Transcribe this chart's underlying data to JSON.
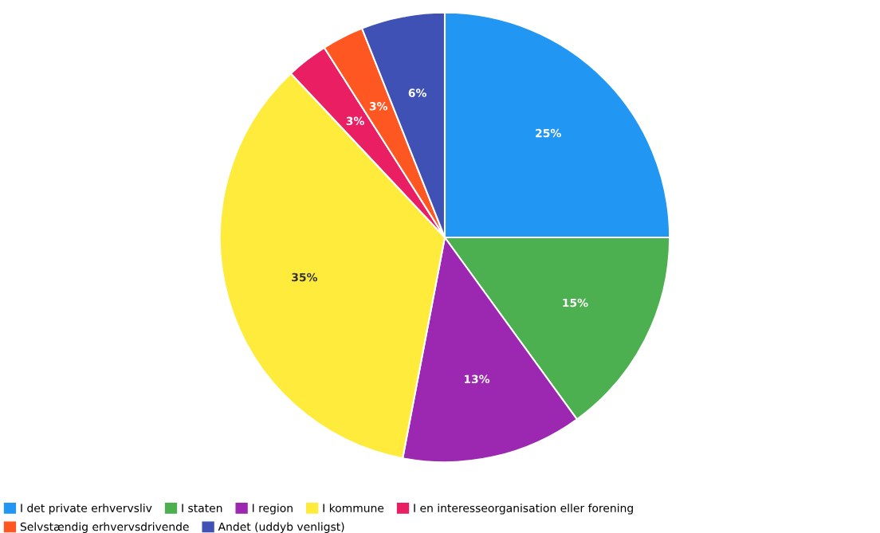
{
  "chart_data": {
    "type": "pie",
    "categories": [
      "I det private erhvervsliv",
      "I staten",
      "I region",
      "I kommune",
      "I en interesseorganisation eller forening",
      "Selvstændig erhvervsdrivende",
      "Andet (uddyb venligst)"
    ],
    "values": [
      25,
      15,
      13,
      35,
      3,
      3,
      6
    ],
    "value_labels": [
      "25%",
      "15%",
      "13%",
      "35%",
      "3%",
      "3%",
      "6%"
    ],
    "colors": [
      "#2196f3",
      "#4caf50",
      "#9c27b0",
      "#ffeb3b",
      "#e91e63",
      "#ff5722",
      "#3f51b5"
    ],
    "legend": "bottom"
  }
}
